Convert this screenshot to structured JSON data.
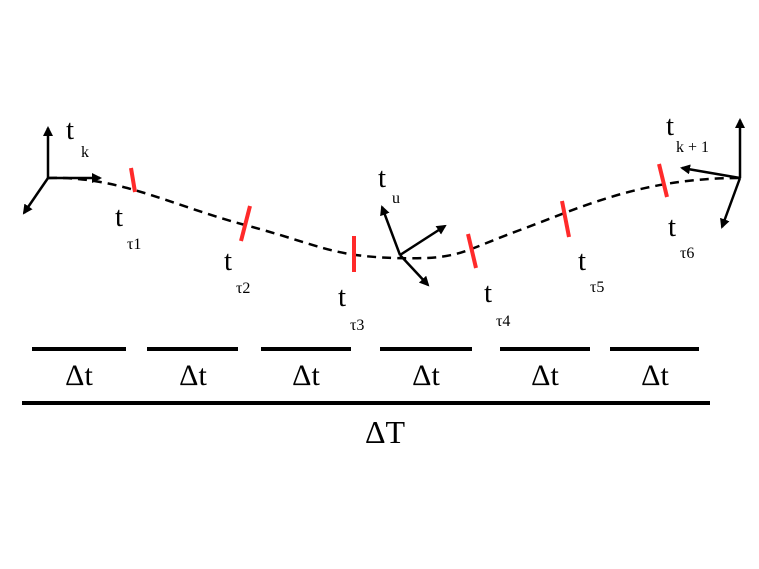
{
  "frames": {
    "start": {
      "main": "t",
      "sub": "k",
      "icon": "coordinate-frame-icon"
    },
    "middle": {
      "main": "t",
      "sub": "u",
      "icon": "coordinate-frame-icon"
    },
    "end": {
      "main": "t",
      "sub": "k + 1",
      "icon": "coordinate-frame-icon"
    }
  },
  "samples": [
    {
      "main": "t",
      "sub": "τ1"
    },
    {
      "main": "t",
      "sub": "τ2"
    },
    {
      "main": "t",
      "sub": "τ3"
    },
    {
      "main": "t",
      "sub": "τ4"
    },
    {
      "main": "t",
      "sub": "τ5"
    },
    {
      "main": "t",
      "sub": "τ6"
    }
  ],
  "intervals": [
    "Δt",
    "Δt",
    "Δt",
    "Δt",
    "Δt",
    "Δt"
  ],
  "total_interval": "ΔT",
  "colors": {
    "ink": "#000000",
    "sample_marker": "#ff2a2a"
  }
}
